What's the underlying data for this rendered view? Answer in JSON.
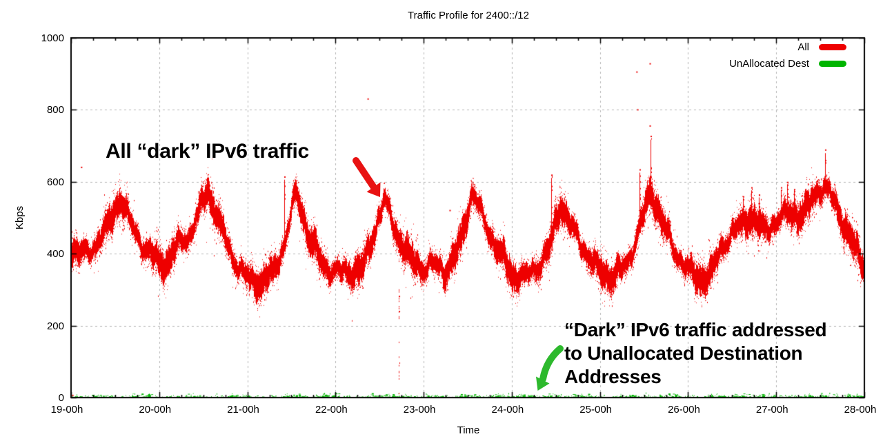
{
  "chart_data": {
    "type": "scatter",
    "title": "Traffic Profile for 2400::/12",
    "xlabel": "Time",
    "ylabel": "Kbps",
    "xlim": [
      19,
      28
    ],
    "ylim": [
      0,
      1000
    ],
    "grid": {
      "style": "dashed",
      "horizontal_kbps": [
        200,
        400,
        600,
        800
      ],
      "vertical_hours": [
        20,
        21,
        22,
        23,
        24,
        25,
        26,
        27,
        28
      ]
    },
    "xticks": {
      "major_labels": [
        "19-00h",
        "20-00h",
        "21-00h",
        "22-00h",
        "23-00h",
        "24-00h",
        "25-00h",
        "26-00h",
        "27-00h",
        "28-00h"
      ],
      "major_values": [
        19,
        20,
        21,
        22,
        23,
        24,
        25,
        26,
        27,
        28
      ],
      "minor_step_hours": 0.25
    },
    "yticks": {
      "labels": [
        "0",
        "200",
        "400",
        "600",
        "800",
        "1000"
      ],
      "values": [
        0,
        200,
        400,
        600,
        800,
        1000
      ]
    },
    "legend": {
      "position": "top-right-inside",
      "entries": [
        {
          "label": "All",
          "color": "#ee0000"
        },
        {
          "label": "UnAllocated Dest",
          "color": "#00b400"
        }
      ]
    },
    "series": [
      {
        "name": "All",
        "color": "#ee0000",
        "style": "dense-dot-band",
        "band_halfwidth_kbps": 40,
        "band_center_kbps": [
          [
            19.0,
            420
          ],
          [
            19.1,
            398
          ],
          [
            19.2,
            405
          ],
          [
            19.3,
            435
          ],
          [
            19.42,
            480
          ],
          [
            19.55,
            555
          ],
          [
            19.7,
            470
          ],
          [
            19.85,
            410
          ],
          [
            20.0,
            375
          ],
          [
            20.1,
            378
          ],
          [
            20.2,
            425
          ],
          [
            20.35,
            455
          ],
          [
            20.55,
            580
          ],
          [
            20.7,
            470
          ],
          [
            20.85,
            380
          ],
          [
            21.0,
            330
          ],
          [
            21.15,
            318
          ],
          [
            21.3,
            350
          ],
          [
            21.42,
            430
          ],
          [
            21.55,
            570
          ],
          [
            21.7,
            445
          ],
          [
            21.85,
            370
          ],
          [
            22.0,
            348
          ],
          [
            22.15,
            350
          ],
          [
            22.3,
            355
          ],
          [
            22.42,
            450
          ],
          [
            22.55,
            550
          ],
          [
            22.7,
            450
          ],
          [
            22.85,
            385
          ],
          [
            23.0,
            358
          ],
          [
            23.1,
            372
          ],
          [
            23.25,
            350
          ],
          [
            23.4,
            420
          ],
          [
            23.55,
            575
          ],
          [
            23.7,
            480
          ],
          [
            23.85,
            405
          ],
          [
            24.0,
            342
          ],
          [
            24.15,
            333
          ],
          [
            24.3,
            368
          ],
          [
            24.42,
            410
          ],
          [
            24.55,
            540
          ],
          [
            24.7,
            460
          ],
          [
            24.85,
            400
          ],
          [
            25.0,
            348
          ],
          [
            25.15,
            335
          ],
          [
            25.3,
            370
          ],
          [
            25.42,
            450
          ],
          [
            25.57,
            575
          ],
          [
            25.7,
            490
          ],
          [
            25.85,
            405
          ],
          [
            26.0,
            355
          ],
          [
            26.12,
            328
          ],
          [
            26.25,
            340
          ],
          [
            26.4,
            430
          ],
          [
            26.55,
            470
          ],
          [
            26.7,
            505
          ],
          [
            26.85,
            465
          ],
          [
            27.0,
            490
          ],
          [
            27.15,
            515
          ],
          [
            27.3,
            505
          ],
          [
            27.48,
            585
          ],
          [
            27.6,
            570
          ],
          [
            27.75,
            490
          ],
          [
            27.88,
            415
          ],
          [
            28.0,
            368
          ]
        ],
        "vertical_spikes_kbps": [
          [
            21.42,
            615
          ],
          [
            24.45,
            620
          ],
          [
            25.45,
            635
          ],
          [
            25.57,
            728
          ],
          [
            26.62,
            560
          ],
          [
            26.72,
            585
          ],
          [
            26.8,
            565
          ],
          [
            27.05,
            585
          ],
          [
            27.12,
            600
          ],
          [
            27.2,
            580
          ],
          [
            27.55,
            690
          ]
        ],
        "low_streaks": [
          {
            "hour": 22.72,
            "from_kbps": 5,
            "to_kbps": 340
          }
        ],
        "outliers": [
          [
            22.37,
            830
          ],
          [
            25.42,
            905
          ],
          [
            25.57,
            928
          ],
          [
            25.43,
            800
          ],
          [
            19.12,
            640
          ],
          [
            25.57,
            755
          ],
          [
            23.3,
            520
          ],
          [
            19.02,
            6
          ]
        ]
      },
      {
        "name": "UnAllocated Dest",
        "color": "#00b400",
        "style": "sparse-dot-baseline",
        "range_kbps": [
          0,
          15
        ],
        "typical_kbps": [
          0,
          7
        ],
        "dense_cluster_hours": [
          19.35,
          19.8,
          20.4,
          20.9,
          21.5,
          21.95,
          22.5,
          22.75,
          23.1,
          23.5,
          23.85,
          24.15,
          24.45,
          24.8,
          25.3,
          25.75,
          26.3,
          26.6,
          26.9,
          27.3,
          27.6,
          27.9
        ]
      }
    ]
  },
  "annotations": {
    "all_dark": {
      "text": "All “dark” IPv6 traffic",
      "arrow_color": "#e81212",
      "arrow_points_to": {
        "hour": 22.51,
        "kbps": 560
      }
    },
    "unallocated": {
      "lines": [
        "“Dark” IPv6 traffic addressed",
        "to Unallocated Destination",
        "Addresses"
      ],
      "arrow_color": "#2db92d",
      "arrow_points_to": {
        "hour": 24.32,
        "kbps": 15
      }
    }
  }
}
